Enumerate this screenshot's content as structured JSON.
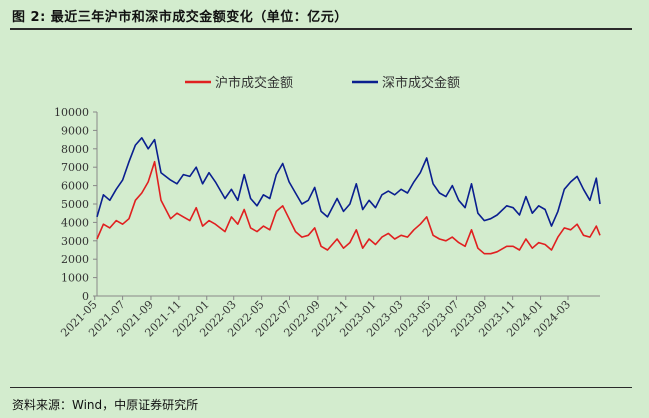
{
  "figure": {
    "title": "图 2:  最近三年沪市和深市成交金额变化（单位：亿元）",
    "source": "资料来源：Wind，中原证券研究所"
  },
  "colors": {
    "background": "#d3ecce",
    "series_sh": "#e02020",
    "series_sz": "#0a1f8f",
    "axis": "#888888"
  },
  "chart_data": {
    "type": "line",
    "x_type": "date",
    "x_range": [
      "2021-05-06",
      "2024-05-10"
    ],
    "ylim": [
      0,
      10000
    ],
    "yticks": [
      0,
      1000,
      2000,
      3000,
      4000,
      5000,
      6000,
      7000,
      8000,
      9000,
      10000
    ],
    "xticks": [
      "2021-05",
      "2021-07",
      "2021-09",
      "2021-11",
      "2022-01",
      "2022-03",
      "2022-05",
      "2022-07",
      "2022-09",
      "2022-11",
      "2023-01",
      "2023-03",
      "2023-05",
      "2023-07",
      "2023-09",
      "2023-11",
      "2024-01",
      "2024-03"
    ],
    "grid": false,
    "legend_position": "top-center",
    "series": [
      {
        "name": "沪市成交金额",
        "x": [
          "2021-05-06",
          "2021-05-20",
          "2021-06-03",
          "2021-06-17",
          "2021-07-01",
          "2021-07-15",
          "2021-07-29",
          "2021-08-12",
          "2021-08-26",
          "2021-09-09",
          "2021-09-23",
          "2021-10-14",
          "2021-10-28",
          "2021-11-11",
          "2021-11-25",
          "2021-12-09",
          "2021-12-23",
          "2022-01-06",
          "2022-01-20",
          "2022-02-10",
          "2022-02-24",
          "2022-03-10",
          "2022-03-24",
          "2022-04-07",
          "2022-04-21",
          "2022-05-05",
          "2022-05-19",
          "2022-06-02",
          "2022-06-16",
          "2022-06-30",
          "2022-07-14",
          "2022-07-28",
          "2022-08-11",
          "2022-08-25",
          "2022-09-08",
          "2022-09-22",
          "2022-10-13",
          "2022-10-27",
          "2022-11-10",
          "2022-11-24",
          "2022-12-08",
          "2022-12-22",
          "2023-01-05",
          "2023-01-19",
          "2023-02-02",
          "2023-02-16",
          "2023-03-02",
          "2023-03-16",
          "2023-03-30",
          "2023-04-13",
          "2023-04-27",
          "2023-05-11",
          "2023-05-25",
          "2023-06-08",
          "2023-06-22",
          "2023-07-06",
          "2023-07-20",
          "2023-08-03",
          "2023-08-17",
          "2023-08-31",
          "2023-09-14",
          "2023-09-28",
          "2023-10-19",
          "2023-11-02",
          "2023-11-16",
          "2023-11-30",
          "2023-12-14",
          "2023-12-28",
          "2024-01-11",
          "2024-01-25",
          "2024-02-08",
          "2024-02-22",
          "2024-03-07",
          "2024-03-21",
          "2024-04-04",
          "2024-04-18",
          "2024-05-02",
          "2024-05-10"
        ],
        "values": [
          3100,
          3900,
          3700,
          4100,
          3900,
          4200,
          5200,
          5600,
          6200,
          7300,
          5200,
          4200,
          4500,
          4300,
          4100,
          4800,
          3800,
          4100,
          3900,
          3500,
          4300,
          3900,
          4700,
          3700,
          3500,
          3800,
          3600,
          4600,
          4900,
          4200,
          3500,
          3200,
          3300,
          3700,
          2700,
          2500,
          3100,
          2600,
          2900,
          3600,
          2600,
          3100,
          2800,
          3200,
          3400,
          3100,
          3300,
          3200,
          3600,
          3900,
          4300,
          3300,
          3100,
          3000,
          3200,
          2900,
          2700,
          3600,
          2600,
          2300,
          2300,
          2400,
          2700,
          2700,
          2500,
          3100,
          2600,
          2900,
          2800,
          2500,
          3200,
          3700,
          3600,
          3900,
          3300,
          3200,
          3800,
          3300
        ]
      },
      {
        "name": "深市成交金额",
        "x": [
          "2021-05-06",
          "2021-05-20",
          "2021-06-03",
          "2021-06-17",
          "2021-07-01",
          "2021-07-15",
          "2021-07-29",
          "2021-08-12",
          "2021-08-26",
          "2021-09-09",
          "2021-09-23",
          "2021-10-14",
          "2021-10-28",
          "2021-11-11",
          "2021-11-25",
          "2021-12-09",
          "2021-12-23",
          "2022-01-06",
          "2022-01-20",
          "2022-02-10",
          "2022-02-24",
          "2022-03-10",
          "2022-03-24",
          "2022-04-07",
          "2022-04-21",
          "2022-05-05",
          "2022-05-19",
          "2022-06-02",
          "2022-06-16",
          "2022-06-30",
          "2022-07-14",
          "2022-07-28",
          "2022-08-11",
          "2022-08-25",
          "2022-09-08",
          "2022-09-22",
          "2022-10-13",
          "2022-10-27",
          "2022-11-10",
          "2022-11-24",
          "2022-12-08",
          "2022-12-22",
          "2023-01-05",
          "2023-01-19",
          "2023-02-02",
          "2023-02-16",
          "2023-03-02",
          "2023-03-16",
          "2023-03-30",
          "2023-04-13",
          "2023-04-27",
          "2023-05-11",
          "2023-05-25",
          "2023-06-08",
          "2023-06-22",
          "2023-07-06",
          "2023-07-20",
          "2023-08-03",
          "2023-08-17",
          "2023-08-31",
          "2023-09-14",
          "2023-09-28",
          "2023-10-19",
          "2023-11-02",
          "2023-11-16",
          "2023-11-30",
          "2023-12-14",
          "2023-12-28",
          "2024-01-11",
          "2024-01-25",
          "2024-02-08",
          "2024-02-22",
          "2024-03-07",
          "2024-03-21",
          "2024-04-04",
          "2024-04-18",
          "2024-05-02",
          "2024-05-10"
        ],
        "values": [
          4300,
          5500,
          5200,
          5800,
          6300,
          7300,
          8200,
          8600,
          8000,
          8500,
          6700,
          6300,
          6100,
          6600,
          6500,
          7000,
          6100,
          6700,
          6200,
          5300,
          5800,
          5200,
          6600,
          5300,
          4900,
          5500,
          5300,
          6600,
          7200,
          6200,
          5600,
          5000,
          5200,
          5900,
          4600,
          4300,
          5300,
          4600,
          5000,
          6100,
          4700,
          5200,
          4800,
          5500,
          5700,
          5500,
          5800,
          5600,
          6200,
          6700,
          7500,
          6100,
          5600,
          5400,
          6000,
          5200,
          4800,
          6100,
          4500,
          4100,
          4200,
          4400,
          4900,
          4800,
          4400,
          5400,
          4500,
          4900,
          4700,
          3800,
          4600,
          5800,
          6200,
          6500,
          5800,
          5200,
          6400,
          5000
        ]
      }
    ]
  }
}
